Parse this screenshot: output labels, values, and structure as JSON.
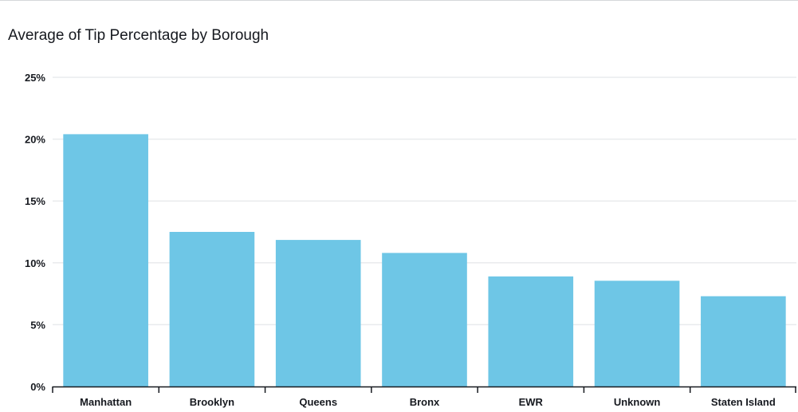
{
  "chart_data": {
    "type": "bar",
    "title": "Average of Tip Percentage by Borough",
    "xlabel": "",
    "ylabel": "",
    "categories": [
      "Manhattan",
      "Brooklyn",
      "Queens",
      "Bronx",
      "EWR",
      "Unknown",
      "Staten Island"
    ],
    "values": [
      20.4,
      12.5,
      11.85,
      10.8,
      8.9,
      8.55,
      7.3
    ],
    "ylim": [
      0,
      25
    ],
    "yticks": [
      0,
      5,
      10,
      15,
      20,
      25
    ],
    "ytick_labels": [
      "0%",
      "5%",
      "10%",
      "15%",
      "20%",
      "25%"
    ],
    "grid": true,
    "bar_color": "#6ec6e6",
    "grid_color": "#e9ebed",
    "axis_color": "#16191f"
  }
}
